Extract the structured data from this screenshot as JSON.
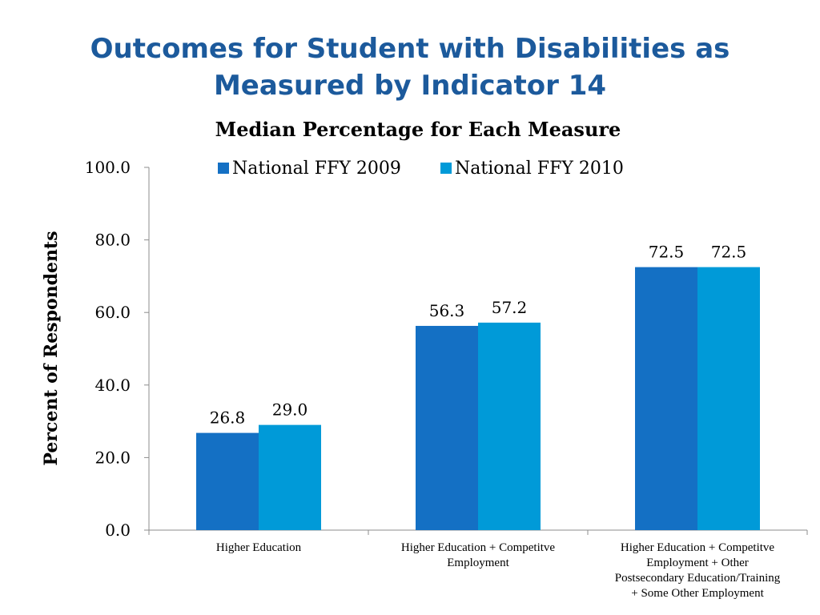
{
  "slide": {
    "title_line1": "Outcomes for Student with Disabilities as",
    "title_line2": "Measured by Indicator 14"
  },
  "chart_data": {
    "type": "bar",
    "title": "Median Percentage for Each Measure",
    "ylabel": "Percent of Respondents",
    "xlabel": "",
    "ylim": [
      0,
      100
    ],
    "yticks": [
      "0.0",
      "20.0",
      "40.0",
      "60.0",
      "80.0",
      "100.0"
    ],
    "grid": false,
    "legend_position": "top",
    "categories": [
      [
        "Higher Education"
      ],
      [
        "Higher Education + Competitve",
        "Employment"
      ],
      [
        "Higher Education + Competitve",
        "Employment + Other",
        "Postsecondary Education/Training",
        "+ Some Other Employment"
      ]
    ],
    "series": [
      {
        "name": "National FFY 2009",
        "color": "#1470c4",
        "values": [
          26.8,
          56.3,
          72.5
        ],
        "labels": [
          "26.8",
          "56.3",
          "72.5"
        ]
      },
      {
        "name": "National FFY 2010",
        "color": "#009ad8",
        "values": [
          29.0,
          57.2,
          72.5
        ],
        "labels": [
          "29.0",
          "57.2",
          "72.5"
        ]
      }
    ]
  }
}
